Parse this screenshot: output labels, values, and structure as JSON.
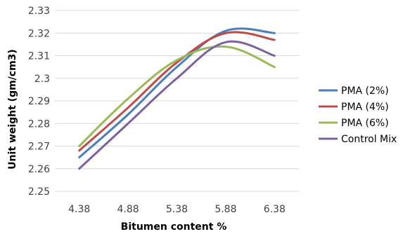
{
  "chart_data": {
    "type": "line",
    "title": "",
    "xlabel": "Bitumen content %",
    "ylabel": "Unit weight (gm/cm3)",
    "x": [
      4.38,
      4.88,
      5.38,
      5.88,
      6.38
    ],
    "x_ticks": [
      "4.38",
      "4.88",
      "5.38",
      "5.88",
      "6.38"
    ],
    "y_ticks": [
      "2.25",
      "2.26",
      "2.27",
      "2.28",
      "2.29",
      "2.3",
      "2.31",
      "2.32",
      "2.33"
    ],
    "ylim": [
      2.25,
      2.33
    ],
    "grid": "horizontal",
    "legend_position": "right",
    "series": [
      {
        "name": "PMA (2%)",
        "color": "#4a7ebb",
        "values": [
          2.265,
          2.284,
          2.305,
          2.321,
          2.32
        ]
      },
      {
        "name": "PMA (4%)",
        "color": "#be4b48",
        "values": [
          2.268,
          2.287,
          2.307,
          2.32,
          2.317
        ]
      },
      {
        "name": "PMA (6%)",
        "color": "#98b954",
        "values": [
          2.27,
          2.291,
          2.308,
          2.314,
          2.305
        ]
      },
      {
        "name": "Control Mix",
        "color": "#7d60a0",
        "values": [
          2.26,
          2.28,
          2.3,
          2.316,
          2.31
        ]
      }
    ]
  }
}
